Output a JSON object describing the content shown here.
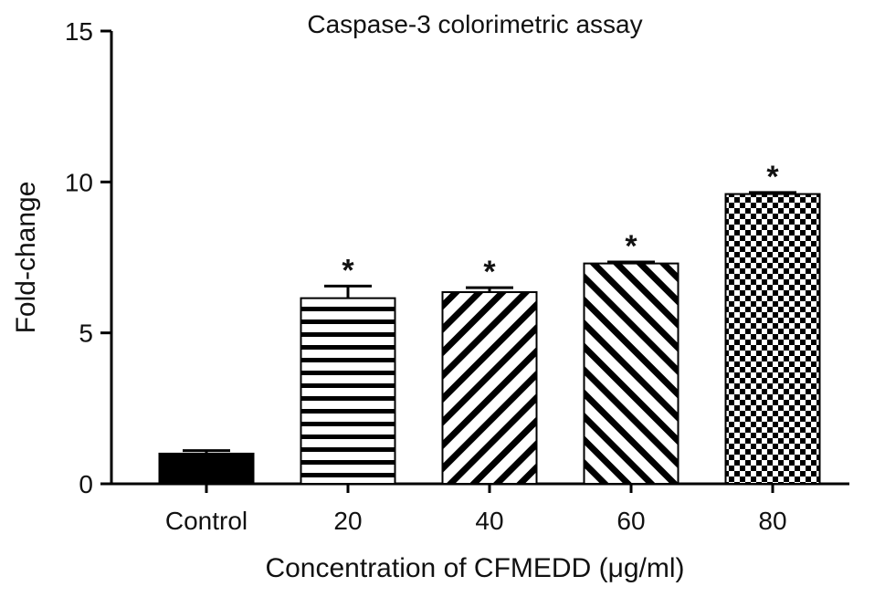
{
  "chart_data": {
    "type": "bar",
    "title": "Caspase-3 colorimetric assay",
    "xlabel": "Concentration of CFMEDD (μg/ml)",
    "ylabel": "Fold-change",
    "ylim": [
      0,
      15
    ],
    "yticks": [
      "0",
      "5",
      "10",
      "15"
    ],
    "categories": [
      "Control",
      "20",
      "40",
      "60",
      "80"
    ],
    "values": [
      1.0,
      6.15,
      6.35,
      7.3,
      9.6
    ],
    "errors": [
      0.1,
      0.4,
      0.15,
      0.05,
      0.05
    ],
    "significance": [
      "",
      "*",
      "*",
      "*",
      "*"
    ],
    "patterns": [
      "solid",
      "horizontal-lines",
      "diagonal-down",
      "diagonal-up",
      "checker"
    ],
    "bar_color": "#000000",
    "grid": false
  }
}
